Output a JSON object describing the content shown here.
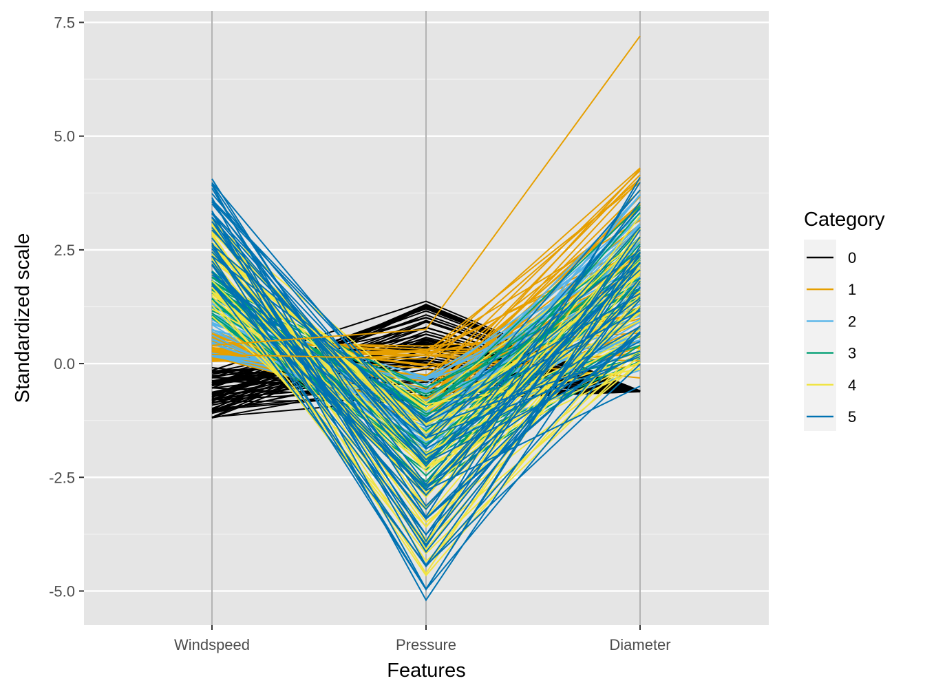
{
  "chart_data": {
    "type": "parallel-coordinates",
    "xlabel": "Features",
    "ylabel": "Standardized scale",
    "features": [
      "Windspeed",
      "Pressure",
      "Diameter"
    ],
    "ylim": [
      -5.75,
      7.75
    ],
    "y_ticks": [
      {
        "value": 7.5,
        "label": "7.5"
      },
      {
        "value": 5.0,
        "label": "5.0"
      },
      {
        "value": 2.5,
        "label": "2.5"
      },
      {
        "value": 0.0,
        "label": "0.0"
      },
      {
        "value": -2.5,
        "label": "-2.5"
      },
      {
        "value": -5.0,
        "label": "-5.0"
      }
    ],
    "grid": true,
    "legend": {
      "title": "Category",
      "position": "right",
      "entries": [
        {
          "label": "0",
          "color": "#000000"
        },
        {
          "label": "1",
          "color": "#E69F00"
        },
        {
          "label": "2",
          "color": "#56B4E9"
        },
        {
          "label": "3",
          "color": "#009E73"
        },
        {
          "label": "4",
          "color": "#F0E442"
        },
        {
          "label": "5",
          "color": "#0072B2"
        }
      ]
    },
    "groups": [
      {
        "category": "0",
        "ranges": [
          [
            -1.2,
            -0.05
          ],
          [
            -0.8,
            1.4
          ],
          [
            -0.62,
            -0.6
          ]
        ]
      },
      {
        "category": "1",
        "ranges": [
          [
            0.0,
            0.75
          ],
          [
            -1.4,
            0.5
          ],
          [
            -0.35,
            4.3
          ]
        ]
      },
      {
        "category": "2",
        "ranges": [
          [
            0.15,
            1.45
          ],
          [
            -2.1,
            -0.2
          ],
          [
            -0.2,
            3.9
          ]
        ]
      },
      {
        "category": "3",
        "ranges": [
          [
            0.9,
            2.05
          ],
          [
            -2.8,
            -0.5
          ],
          [
            0.0,
            3.5
          ]
        ]
      },
      {
        "category": "4",
        "ranges": [
          [
            1.0,
            3.2
          ],
          [
            -4.7,
            -0.8
          ],
          [
            -0.3,
            3.3
          ]
        ]
      },
      {
        "category": "5",
        "ranges": [
          [
            1.7,
            4.2
          ],
          [
            -5.2,
            -1.2
          ],
          [
            -0.55,
            4.1
          ]
        ]
      }
    ],
    "line_counts": {
      "0": 60,
      "1": 50,
      "2": 40,
      "3": 30,
      "4": 45,
      "5": 40
    },
    "outliers": [
      {
        "category": "1",
        "values": [
          0.4,
          0.75,
          7.2
        ]
      },
      {
        "category": "1",
        "values": [
          0.2,
          0.1,
          4.3
        ]
      }
    ]
  }
}
